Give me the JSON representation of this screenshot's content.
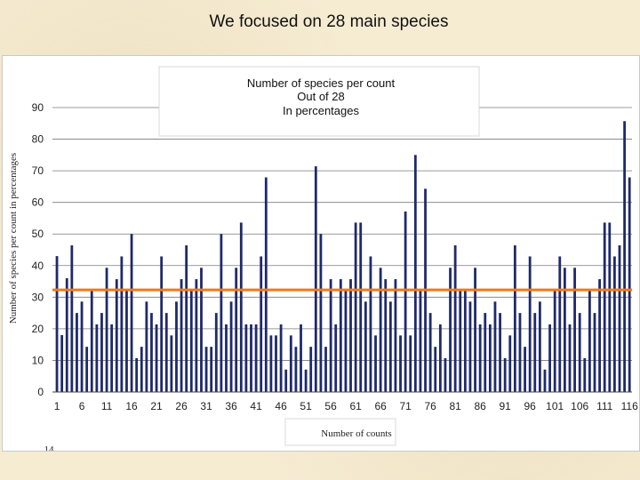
{
  "slide": {
    "title": "We focused on 28  main species",
    "page_number": "14"
  },
  "colors": {
    "bar": "#1f2a6b",
    "reference_line": "#f07a1a",
    "grid": "#7a7a7a"
  },
  "chart_data": {
    "type": "bar",
    "title_lines": [
      "Number of species per count",
      "Out of 28",
      "In percentages"
    ],
    "ylabel": "Number of species per count in percentages",
    "xlabel": "Number of counts",
    "ylim": [
      0,
      90
    ],
    "yticks": [
      0,
      10,
      20,
      30,
      40,
      50,
      60,
      70,
      80,
      90
    ],
    "x_tick_labels": [
      "1",
      "6",
      "11",
      "16",
      "21",
      "26",
      "31",
      "36",
      "41",
      "46",
      "51",
      "56",
      "61",
      "66",
      "71",
      "76",
      "81",
      "86",
      "91",
      "96",
      "101",
      "106",
      "111",
      "116"
    ],
    "grid": true,
    "reference_line": 32.3,
    "values": [
      43,
      18,
      36,
      46.4,
      25,
      28.6,
      14.3,
      32.1,
      21.4,
      25,
      39.3,
      21.4,
      35.7,
      42.9,
      32.1,
      50,
      10.7,
      14.3,
      28.6,
      25,
      21.4,
      42.9,
      25,
      17.9,
      28.6,
      35.7,
      46.4,
      32.1,
      35.7,
      39.3,
      14.3,
      14.3,
      25,
      50,
      21.4,
      28.6,
      39.3,
      53.6,
      21.4,
      21.4,
      21.4,
      42.9,
      67.9,
      17.9,
      17.9,
      21.4,
      7.1,
      17.9,
      14.3,
      21.4,
      7.1,
      14.3,
      71.4,
      50,
      14.3,
      35.7,
      21.4,
      35.7,
      32.1,
      35.7,
      53.6,
      53.6,
      28.6,
      42.9,
      17.9,
      39.3,
      35.7,
      28.6,
      35.7,
      17.9,
      57.1,
      17.9,
      75,
      32.1,
      64.3,
      25,
      14.3,
      21.4,
      10.7,
      39.3,
      46.4,
      32.1,
      32.1,
      28.6,
      39.3,
      21.4,
      25,
      21.4,
      28.6,
      25,
      10.7,
      17.9,
      46.4,
      25,
      14.3,
      42.9,
      25,
      28.6,
      7.1,
      21.4,
      32.1,
      42.9,
      39.3,
      21.4,
      39.3,
      25,
      10.7,
      32.1,
      25,
      35.7,
      53.6,
      53.6,
      42.9,
      46.4,
      85.7,
      67.9
    ]
  }
}
